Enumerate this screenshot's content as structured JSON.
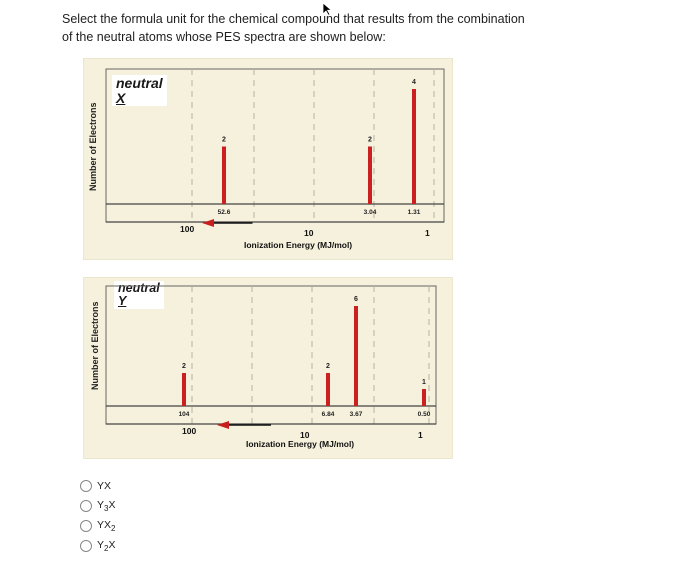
{
  "question": {
    "line1": "Select the formula unit for the chemical compound that results from the combination",
    "line2": "of the neutral atoms whose PES spectra are shown below:"
  },
  "spectra": [
    {
      "id": "x",
      "neutral_label": "neutral",
      "atom": "X",
      "y_axis_label": "Number of Electrons",
      "x_axis_title": "Ionization Energy (MJ/mol)",
      "tick_labels": [
        "100",
        "10",
        "1"
      ],
      "peaks": [
        {
          "energy_label": "52.6",
          "count_label": "2",
          "relative_height": 0.5
        },
        {
          "energy_label": "3.04",
          "count_label": "2",
          "relative_height": 0.5
        },
        {
          "energy_label": "1.31",
          "count_label": "4",
          "relative_height": 1.0
        }
      ]
    },
    {
      "id": "y",
      "neutral_label": "neutral",
      "atom": "Y",
      "y_axis_label": "Number of Electrons",
      "x_axis_title": "Ionization Energy (MJ/mol)",
      "tick_labels": [
        "100",
        "10",
        "1"
      ],
      "peaks": [
        {
          "energy_label": "104",
          "count_label": "2",
          "relative_height": 0.33
        },
        {
          "energy_label": "6.84",
          "count_label": "2",
          "relative_height": 0.33
        },
        {
          "energy_label": "3.67",
          "count_label": "6",
          "relative_height": 1.0
        },
        {
          "energy_label": "0.50",
          "count_label": "1",
          "relative_height": 0.17
        }
      ]
    }
  ],
  "answers": [
    {
      "id": "a1",
      "label": "YX"
    },
    {
      "id": "a2",
      "label": "Y3X"
    },
    {
      "id": "a3",
      "label": "YX2"
    },
    {
      "id": "a4",
      "label": "Y2X"
    }
  ],
  "colors": {
    "panel_bg": "#f6f1dc",
    "peak": "#cc1f1f",
    "arrow": "#c81e1e"
  }
}
